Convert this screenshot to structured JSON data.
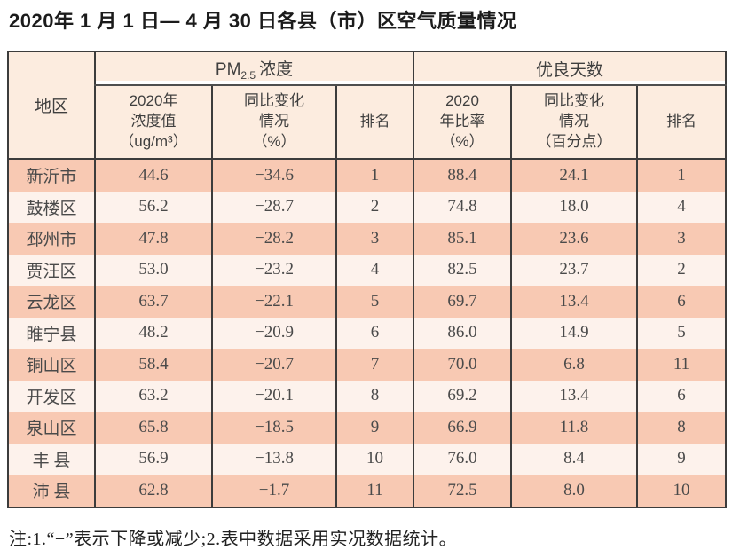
{
  "title": "2020年 1 月 1 日— 4 月 30 日各县（市）区空气质量情况",
  "table": {
    "region_header": "地区",
    "group_pm25": {
      "pm": "PM",
      "pm_sub": "2.5",
      "suffix": "浓度"
    },
    "group_days": "优良天数",
    "sub_headers": {
      "pm_value": "2020年\n浓度值\n（ug/m³）",
      "pm_change": "同比变化\n情况\n（%）",
      "pm_rank": "排名",
      "days_ratio": "2020\n年比率\n（%）",
      "days_change": "同比变化\n情况\n（百分点）",
      "days_rank": "排名"
    },
    "rows": [
      {
        "region": "新沂市",
        "values": [
          "44.6",
          "−34.6",
          "1",
          "88.4",
          "24.1",
          "1"
        ]
      },
      {
        "region": "鼓楼区",
        "values": [
          "56.2",
          "−28.7",
          "2",
          "74.8",
          "18.0",
          "4"
        ]
      },
      {
        "region": "邳州市",
        "values": [
          "47.8",
          "−28.2",
          "3",
          "85.1",
          "23.6",
          "3"
        ]
      },
      {
        "region": "贾汪区",
        "values": [
          "53.0",
          "−23.2",
          "4",
          "82.5",
          "23.7",
          "2"
        ]
      },
      {
        "region": "云龙区",
        "values": [
          "63.7",
          "−22.1",
          "5",
          "69.7",
          "13.4",
          "6"
        ]
      },
      {
        "region": "睢宁县",
        "values": [
          "48.2",
          "−20.9",
          "6",
          "86.0",
          "14.9",
          "5"
        ]
      },
      {
        "region": "铜山区",
        "values": [
          "58.4",
          "−20.7",
          "7",
          "70.0",
          "6.8",
          "11"
        ]
      },
      {
        "region": "开发区",
        "values": [
          "63.2",
          "−20.1",
          "8",
          "69.2",
          "13.4",
          "6"
        ]
      },
      {
        "region": "泉山区",
        "values": [
          "65.8",
          "−18.5",
          "9",
          "66.9",
          "11.8",
          "8"
        ]
      },
      {
        "region": "丰 县",
        "values": [
          "56.9",
          "−13.8",
          "10",
          "76.0",
          "8.4",
          "9"
        ]
      },
      {
        "region": "沛 县",
        "values": [
          "62.8",
          "−1.7",
          "11",
          "72.5",
          "8.0",
          "10"
        ]
      }
    ]
  },
  "note": "注:1.“−”表示下降或减少;2.表中数据采用实况数据统计。",
  "colors": {
    "header_bg": "#fcecdf",
    "row_odd_bg": "#f8c9b3",
    "row_even_bg": "#fdf2ec",
    "border": "#3c3c3c"
  }
}
